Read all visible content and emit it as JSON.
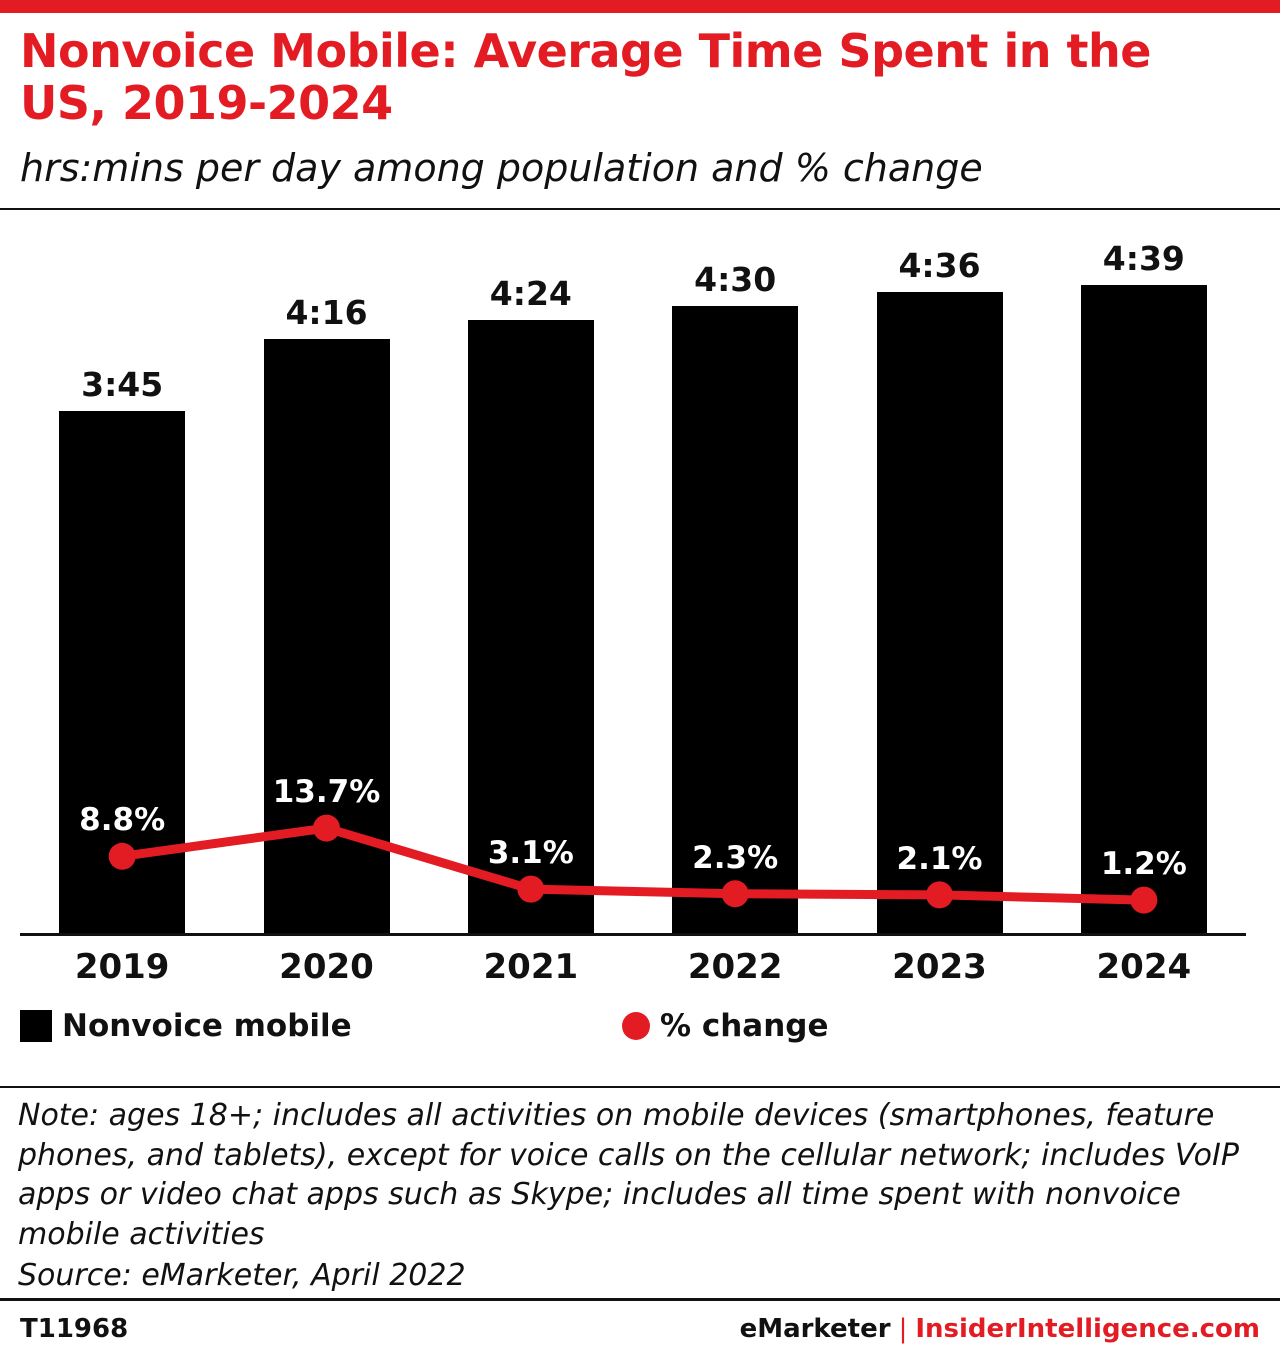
{
  "header": {
    "title": "Nonvoice Mobile: Average Time Spent in the US, 2019-2024",
    "subtitle": "hrs:mins per day among population and % change"
  },
  "chart_data": {
    "type": "bar",
    "categories": [
      "2019",
      "2020",
      "2021",
      "2022",
      "2023",
      "2024"
    ],
    "series": [
      {
        "name": "Nonvoice mobile",
        "type": "bar",
        "unit": "hrs:mins per day",
        "labels": [
          "3:45",
          "4:16",
          "4:24",
          "4:30",
          "4:36",
          "4:39"
        ],
        "values_minutes": [
          225,
          256,
          264,
          270,
          276,
          279
        ],
        "color": "#000000"
      },
      {
        "name": "% change",
        "type": "line",
        "labels": [
          "8.8%",
          "13.7%",
          "3.1%",
          "2.3%",
          "2.1%",
          "1.2%"
        ],
        "values": [
          8.8,
          13.7,
          3.1,
          2.3,
          2.1,
          1.2
        ],
        "color": "#e31b23"
      }
    ],
    "title": "Nonvoice Mobile: Average Time Spent in the US, 2019-2024",
    "xlabel": "",
    "ylabel": "hrs:mins per day",
    "grid": false,
    "legend_position": "bottom"
  },
  "legend": [
    {
      "label": "Nonvoice mobile",
      "color": "#000000",
      "marker": "square"
    },
    {
      "label": "% change",
      "color": "#e31b23",
      "marker": "circle"
    }
  ],
  "note": "Note: ages 18+; includes all activities on mobile devices (smartphones, feature phones, and tablets), except for voice calls on the cellular network; includes VoIP apps or video chat apps such as Skype; includes all time spent with nonvoice mobile activities",
  "source": "Source: eMarketer, April 2022",
  "footer": {
    "id": "T11968",
    "brand": "eMarketer",
    "separator": "|",
    "site": "InsiderIntelligence.com"
  },
  "colors": {
    "accent": "#e31b23",
    "bar": "#000000",
    "text": "#111111"
  }
}
